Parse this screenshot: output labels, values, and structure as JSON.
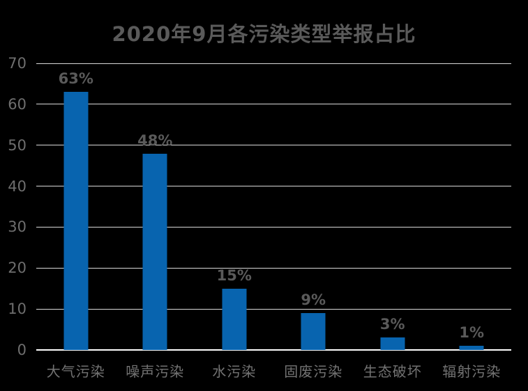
{
  "chart_data": {
    "type": "bar",
    "title": "2020年9月各污染类型举报占比",
    "categories": [
      "大气污染",
      "噪声污染",
      "水污染",
      "固废污染",
      "生态破坏",
      "辐射污染"
    ],
    "values": [
      63,
      48,
      15,
      9,
      3,
      1
    ],
    "value_labels": [
      "63%",
      "48%",
      "15%",
      "9%",
      "3%",
      "1%"
    ],
    "xlabel": "",
    "ylabel": "",
    "ylim": [
      0,
      70
    ],
    "yticks": [
      0,
      10,
      20,
      30,
      40,
      50,
      60,
      70
    ],
    "grid": true,
    "legend": false
  },
  "colors": {
    "background": "#000000",
    "bar": "#0864af",
    "gridline": "#d9d9d9",
    "axis_line": "#ffffff",
    "title_text": "#5a5a5a",
    "value_label_text": "#5a5a5a",
    "y_tick_text": "#6e6e6e",
    "category_text": "#737373"
  }
}
